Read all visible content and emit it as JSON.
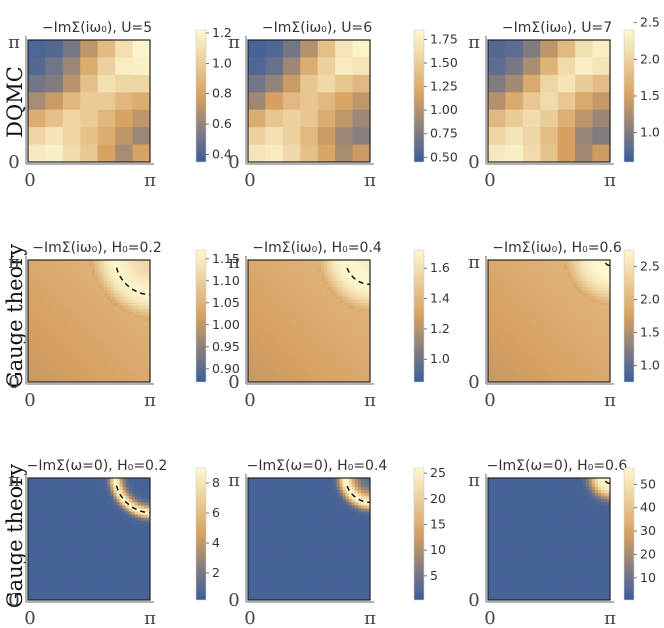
{
  "row_labels": [
    "DQMC",
    "Gauge theory",
    "Gauge theory"
  ],
  "axis_ticks": {
    "zero": "0",
    "pi": "π"
  },
  "palette": [
    "#3a5e9c",
    "#d6a060",
    "#fef8d0"
  ],
  "chart_data": [
    {
      "type": "heatmap",
      "row": 0,
      "col": 0,
      "kind": "grid",
      "title": "−ImΣ(iω₀), U=5",
      "xlabel": "",
      "ylabel": "",
      "xlim": [
        0,
        3.1416
      ],
      "ylim": [
        0,
        3.1416
      ],
      "colorbar_range": [
        0.35,
        1.22
      ],
      "colorbar_ticks": [
        "0.4",
        "0.6",
        "0.8",
        "1.0",
        "1.2"
      ],
      "values": [
        [
          0.4,
          0.42,
          0.52,
          0.72,
          0.92,
          1.1,
          1.2
        ],
        [
          0.42,
          0.5,
          0.62,
          0.85,
          1.02,
          1.16,
          1.18
        ],
        [
          0.5,
          0.55,
          0.7,
          0.95,
          1.1,
          1.05,
          1.05
        ],
        [
          0.65,
          0.75,
          0.9,
          1.0,
          1.0,
          0.9,
          0.85
        ],
        [
          0.85,
          0.95,
          1.05,
          1.0,
          0.9,
          0.8,
          0.72
        ],
        [
          1.05,
          1.12,
          1.05,
          0.95,
          0.85,
          0.72,
          0.62
        ],
        [
          1.15,
          1.18,
          1.08,
          0.98,
          0.8,
          0.65,
          0.8
        ]
      ]
    },
    {
      "type": "heatmap",
      "row": 0,
      "col": 1,
      "kind": "grid",
      "title": "−ImΣ(iω₀), U=6",
      "xlabel": "",
      "ylabel": "",
      "xlim": [
        0,
        3.1416
      ],
      "ylim": [
        0,
        3.1416
      ],
      "colorbar_range": [
        0.45,
        1.85
      ],
      "colorbar_ticks": [
        "0.50",
        "0.75",
        "1.00",
        "1.25",
        "1.50",
        "1.75"
      ],
      "values": [
        [
          0.5,
          0.55,
          0.7,
          1.0,
          1.4,
          1.7,
          1.8
        ],
        [
          0.55,
          0.65,
          0.9,
          1.25,
          1.55,
          1.75,
          1.7
        ],
        [
          0.7,
          0.85,
          1.1,
          1.45,
          1.6,
          1.45,
          1.35
        ],
        [
          0.9,
          1.15,
          1.35,
          1.45,
          1.35,
          1.2,
          1.05
        ],
        [
          1.25,
          1.45,
          1.55,
          1.45,
          1.25,
          1.05,
          0.9
        ],
        [
          1.55,
          1.65,
          1.55,
          1.35,
          1.1,
          0.9,
          0.8
        ],
        [
          1.7,
          1.75,
          1.6,
          1.4,
          1.2,
          0.95,
          1.1
        ]
      ]
    },
    {
      "type": "heatmap",
      "row": 0,
      "col": 2,
      "kind": "grid",
      "title": "−ImΣ(iω₀), U=7",
      "xlabel": "",
      "ylabel": "",
      "xlim": [
        0,
        3.1416
      ],
      "ylim": [
        0,
        3.1416
      ],
      "colorbar_range": [
        0.6,
        2.4
      ],
      "colorbar_ticks": [
        "1.0",
        "1.5",
        "2.0",
        "2.5"
      ],
      "values": [
        [
          0.75,
          0.8,
          1.0,
          1.35,
          1.75,
          2.15,
          2.3
        ],
        [
          0.8,
          0.95,
          1.25,
          1.7,
          2.1,
          2.3,
          2.2
        ],
        [
          1.0,
          1.2,
          1.6,
          2.05,
          2.2,
          1.95,
          1.8
        ],
        [
          1.3,
          1.6,
          1.9,
          2.1,
          1.9,
          1.6,
          1.4
        ],
        [
          1.75,
          1.95,
          2.1,
          1.95,
          1.65,
          1.35,
          1.15
        ],
        [
          2.05,
          2.2,
          2.05,
          1.8,
          1.5,
          1.15,
          1.0
        ],
        [
          2.25,
          2.3,
          2.1,
          1.85,
          1.5,
          1.2,
          1.45
        ]
      ]
    },
    {
      "type": "heatmap",
      "row": 1,
      "col": 0,
      "kind": "smooth_imaginary",
      "title": "−ImΣ(iω₀), H₀=0.2",
      "xlabel": "",
      "ylabel": "",
      "xlim": [
        0,
        3.1416
      ],
      "ylim": [
        0,
        3.1416
      ],
      "fermi_surface_H0": 0.2,
      "colorbar_range": [
        0.87,
        1.17
      ],
      "colorbar_ticks": [
        "0.90",
        "0.95",
        "1.00",
        "1.05",
        "1.10",
        "1.15"
      ]
    },
    {
      "type": "heatmap",
      "row": 1,
      "col": 1,
      "kind": "smooth_imaginary",
      "title": "−ImΣ(iω₀), H₀=0.4",
      "xlabel": "",
      "ylabel": "",
      "xlim": [
        0,
        3.1416
      ],
      "ylim": [
        0,
        3.1416
      ],
      "fermi_surface_H0": 0.4,
      "colorbar_range": [
        0.85,
        1.72
      ],
      "colorbar_ticks": [
        "1.0",
        "1.2",
        "1.4",
        "1.6"
      ]
    },
    {
      "type": "heatmap",
      "row": 1,
      "col": 2,
      "kind": "smooth_imaginary",
      "title": "−ImΣ(iω₀), H₀=0.6",
      "xlabel": "",
      "ylabel": "",
      "xlim": [
        0,
        3.1416
      ],
      "ylim": [
        0,
        3.1416
      ],
      "fermi_surface_H0": 0.6,
      "colorbar_range": [
        0.75,
        2.75
      ],
      "colorbar_ticks": [
        "1.0",
        "1.5",
        "2.0",
        "2.5"
      ]
    },
    {
      "type": "heatmap",
      "row": 2,
      "col": 0,
      "kind": "smooth_real",
      "title": "−ImΣ(ω=0), H₀=0.2",
      "xlabel": "",
      "ylabel": "",
      "xlim": [
        0,
        3.1416
      ],
      "ylim": [
        0,
        3.1416
      ],
      "fermi_surface_H0": 0.2,
      "colorbar_range": [
        0.2,
        9.0
      ],
      "colorbar_ticks": [
        "2",
        "4",
        "6",
        "8"
      ]
    },
    {
      "type": "heatmap",
      "row": 2,
      "col": 1,
      "kind": "smooth_real",
      "title": "−ImΣ(ω=0), H₀=0.4",
      "xlabel": "",
      "ylabel": "",
      "xlim": [
        0,
        3.1416
      ],
      "ylim": [
        0,
        3.1416
      ],
      "fermi_surface_H0": 0.4,
      "colorbar_range": [
        0.3,
        26.0
      ],
      "colorbar_ticks": [
        "5",
        "10",
        "15",
        "20",
        "25"
      ]
    },
    {
      "type": "heatmap",
      "row": 2,
      "col": 2,
      "kind": "smooth_real",
      "title": "−ImΣ(ω=0), H₀=0.6",
      "xlabel": "",
      "ylabel": "",
      "xlim": [
        0,
        3.1416
      ],
      "ylim": [
        0,
        3.1416
      ],
      "fermi_surface_H0": 0.6,
      "colorbar_range": [
        0.5,
        57.0
      ],
      "colorbar_ticks": [
        "10",
        "20",
        "30",
        "40",
        "50"
      ]
    }
  ]
}
